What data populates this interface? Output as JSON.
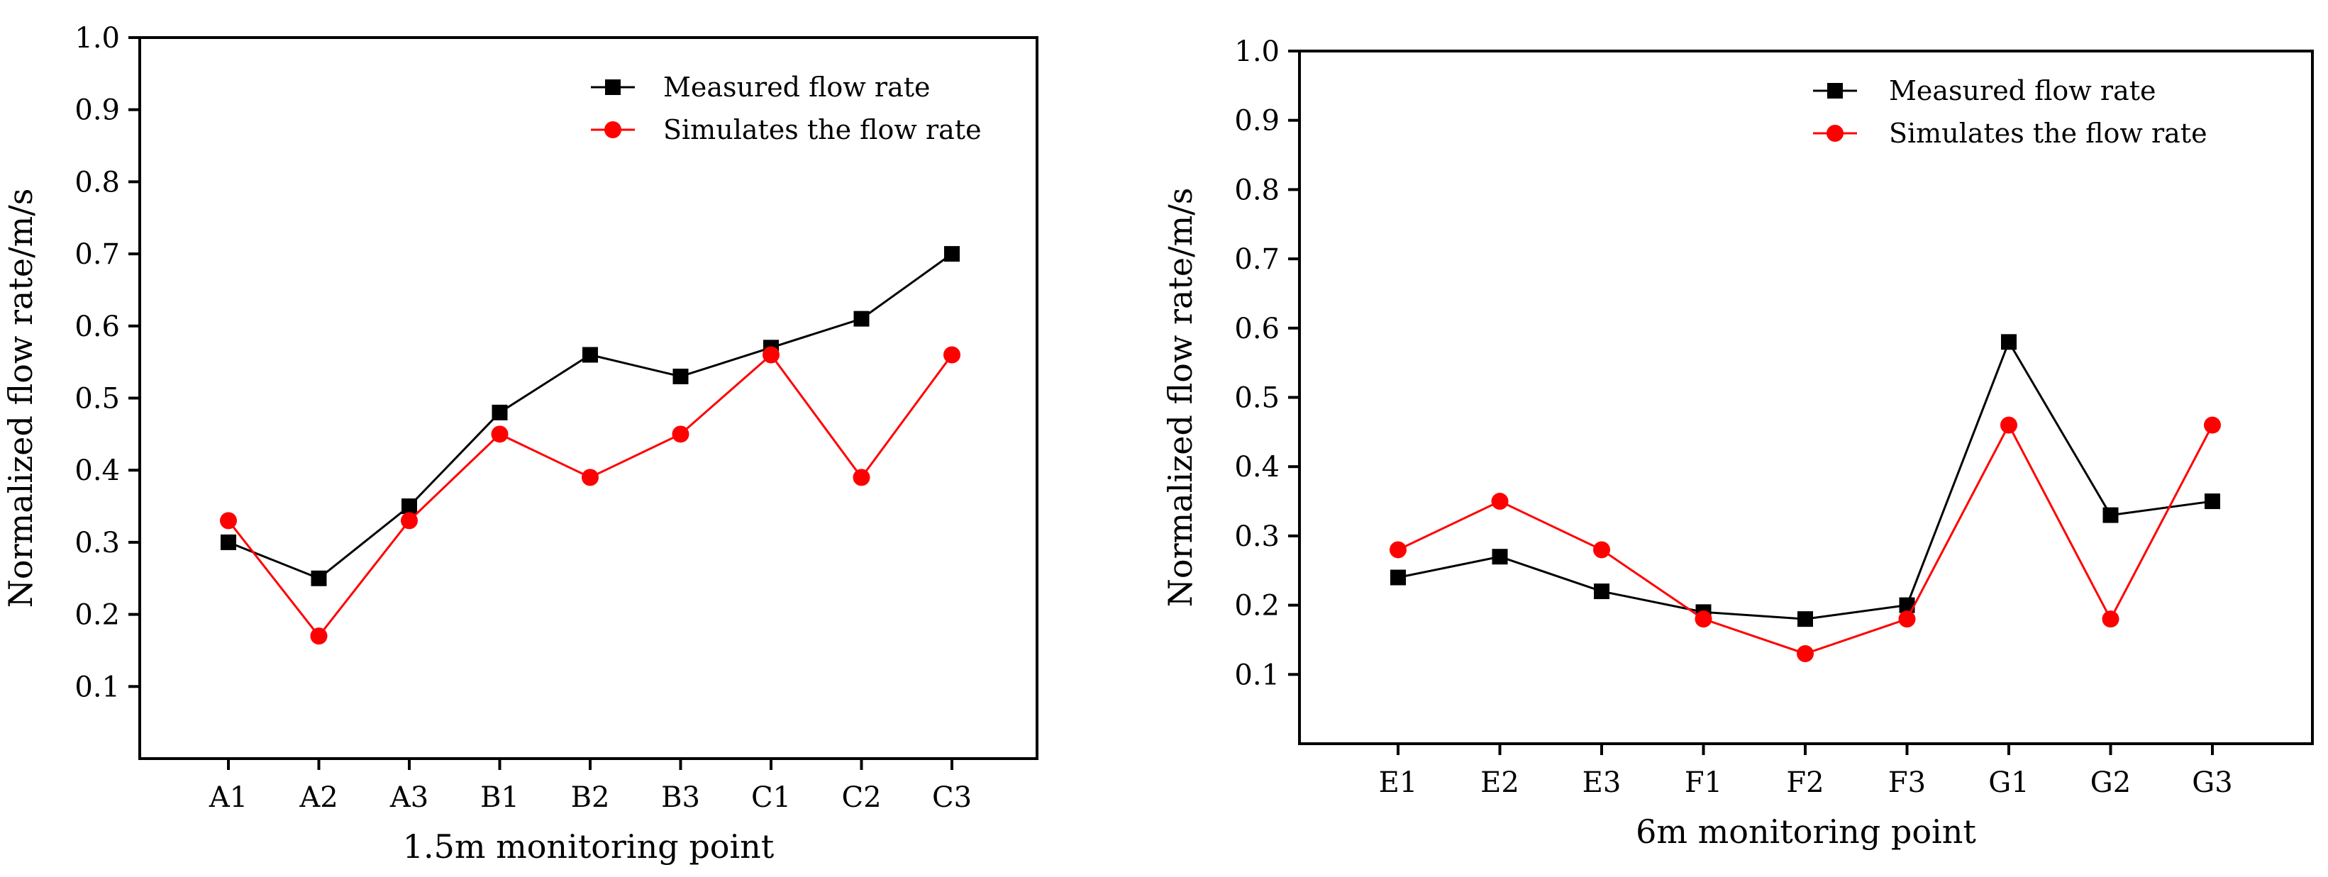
{
  "chart_data": [
    {
      "type": "line",
      "categories": [
        "A1",
        "A2",
        "A3",
        "B1",
        "B2",
        "B3",
        "C1",
        "C2",
        "C3"
      ],
      "series": [
        {
          "name": "Measured flow rate",
          "values": [
            0.3,
            0.25,
            0.35,
            0.48,
            0.56,
            0.53,
            0.57,
            0.61,
            0.7
          ],
          "color": "#000000",
          "marker": "square"
        },
        {
          "name": "Simulates the flow rate",
          "values": [
            0.33,
            0.17,
            0.33,
            0.45,
            0.39,
            0.45,
            0.56,
            0.39,
            0.56
          ],
          "color": "#ff0000",
          "marker": "circle"
        }
      ],
      "xlabel": "1.5m monitoring point",
      "ylabel": "Normalized flow rate/m/s",
      "ylim": [
        0,
        1.0
      ],
      "yticks": [
        0.1,
        0.2,
        0.3,
        0.4,
        0.5,
        0.6,
        0.7,
        0.8,
        0.9
      ],
      "ytick_labels": [
        "0.1",
        "0.2",
        "0.3",
        "0.4",
        "0.5",
        "0.6",
        "0.7",
        "0.8",
        "0.9"
      ],
      "ymax_label": "1.0",
      "legend_position": "top-right",
      "grid": false
    },
    {
      "type": "line",
      "categories": [
        "E1",
        "E2",
        "E3",
        "F1",
        "F2",
        "F3",
        "G1",
        "G2",
        "G3"
      ],
      "series": [
        {
          "name": "Measured flow rate",
          "values": [
            0.24,
            0.27,
            0.22,
            0.19,
            0.18,
            0.2,
            0.58,
            0.33,
            0.35
          ],
          "color": "#000000",
          "marker": "square"
        },
        {
          "name": "Simulates the flow rate",
          "values": [
            0.28,
            0.35,
            0.28,
            0.18,
            0.13,
            0.18,
            0.46,
            0.18,
            0.46
          ],
          "color": "#ff0000",
          "marker": "circle"
        }
      ],
      "xlabel": "6m monitoring point",
      "ylabel": "Normalized flow rate/m/s",
      "ylim": [
        0,
        1.0
      ],
      "yticks": [
        0.1,
        0.2,
        0.3,
        0.4,
        0.5,
        0.6,
        0.7,
        0.8,
        0.9
      ],
      "ytick_labels": [
        "0.1",
        "0.2",
        "0.3",
        "0.4",
        "0.5",
        "0.6",
        "0.7",
        "0.8",
        "0.9"
      ],
      "ymax_label": "1.0",
      "legend_position": "top-right",
      "grid": false
    }
  ]
}
